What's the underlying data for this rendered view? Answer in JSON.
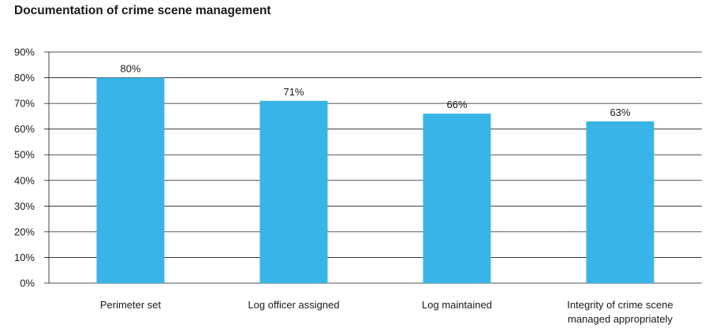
{
  "chart_data": {
    "type": "bar",
    "title": "Documentation of crime scene management",
    "xlabel": "",
    "ylabel": "",
    "categories": [
      [
        "Perimeter set"
      ],
      [
        "Log officer assigned"
      ],
      [
        "Log maintained"
      ],
      [
        "Integrity of crime scene",
        "managed appropriately"
      ]
    ],
    "values": [
      80,
      71,
      66,
      63
    ],
    "data_labels": [
      "80%",
      "71%",
      "66%",
      "63%"
    ],
    "y_ticks": [
      "0%",
      "10%",
      "20%",
      "30%",
      "40%",
      "50%",
      "60%",
      "70%",
      "80%",
      "90%"
    ],
    "ylim": [
      0,
      90
    ],
    "grid": true,
    "bar_color": "#38b4e6",
    "grid_color": "#1a1a1a"
  }
}
